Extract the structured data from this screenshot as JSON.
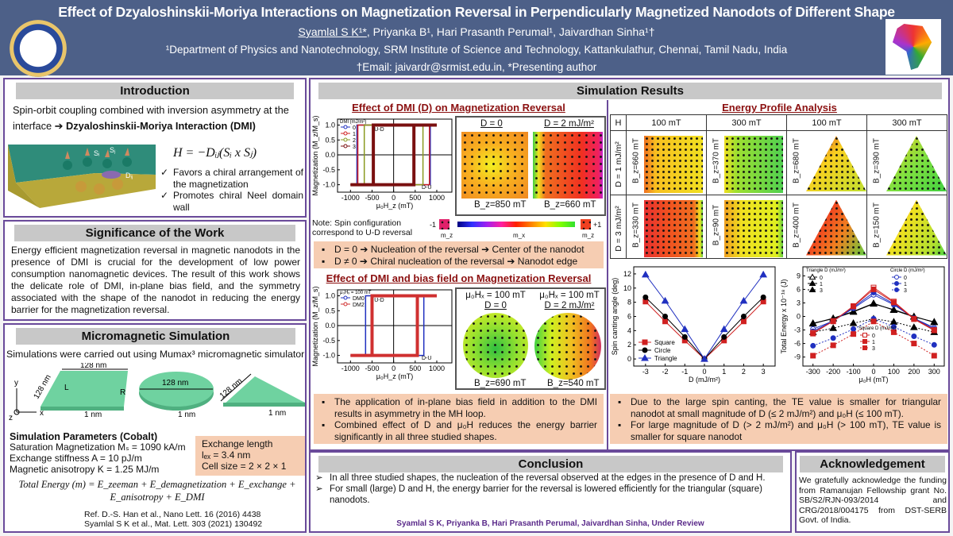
{
  "header": {
    "title": "Effect of Dzyaloshinskii-Moriya Interactions on Magnetization Reversal in Perpendicularly Magnetized Nanodots of Different Shape",
    "authors": [
      "Syamlal S K¹*",
      ", Priyanka B¹, Hari Prasanth Perumal¹, Jaivardhan Sinha¹†"
    ],
    "affiliation": "¹Department of Physics and Nanotechnology, SRM Institute of Science and Technology, Kattankulathur, Chennai, Tamil Nadu, India",
    "email": "†Email: jaivardr@srmist.edu.in, *Presenting author",
    "colors": {
      "header_bg": "#4d6088",
      "section_border": "#6a4a9a",
      "subtitle": "#8b1010",
      "highlight_box": "#f6cdb2"
    }
  },
  "introduction": {
    "title": "Introduction",
    "text": "Spin-orbit coupling combined with inversion asymmetry at the interface",
    "arrow": "➔",
    "bold": "Dzyaloshinskii-Moriya Interaction (DMI)",
    "equation": "H = −Dᵢⱼ(Sᵢ x Sⱼ)",
    "figure_labels": [
      "Sᵢ",
      "Sⱼ",
      "Dᵢⱼ"
    ],
    "points": [
      "Favors a chiral arrangement of the magnetization",
      "Promotes chiral Neel domain wall"
    ]
  },
  "significance": {
    "title": "Significance of the Work",
    "text": "Energy efficient magnetization reversal in magnetic nanodots in the presence of DMI is crucial for the development of low power consumption nanomagnetic devices. The result of this work shows the delicate role of DMI, in-plane bias field, and the symmetry associated with the shape of the nanodot in reducing the energy barrier for the magnetization reversal."
  },
  "micromagnetic": {
    "title": "Micromagnetic Simulation",
    "intro": "Simulations were carried out using Mumax³ micromagnetic simulator",
    "shape_labels": {
      "square_width": "128 nm",
      "square_side": "128 nm",
      "left": "L",
      "right": "R",
      "circle_dia": "128 nm",
      "triangle_side": "128 nm",
      "thickness": "1 nm",
      "axis_x": "x",
      "axis_y": "y",
      "axis_z": "z"
    },
    "params_title": "Simulation Parameters (Cobalt)",
    "params": [
      "Saturation Magnetization Mₛ =  1090 kA/m",
      "Exchange stiffness A = 10 pJ/m",
      "Magnetic anisotropy K = 1.25 MJ/m"
    ],
    "exchange": [
      "Exchange length",
      "lₑₓ = 3.4 nm",
      "Cell size = 2 × 2 × 1"
    ],
    "equation_line1": "Total Energy (m) = E_zeeman + E_demagnetization + E_exchange +",
    "equation_line2": "E_anisotropy + E_DMI",
    "refs": [
      "Ref. D.-S. Han et al., Nano Lett. 16 (2016) 4438",
      "Syamlal S K et al., Mat. Lett. 303 (2021) 130492"
    ]
  },
  "results": {
    "title": "Simulation Results",
    "dmi": {
      "title": "Effect of DMI (D) on Magnetization Reversal",
      "config_labels": [
        "D = 0",
        "D = 2 mJ/m²"
      ],
      "fields": [
        "B_z=850 mT",
        "B_z=660 mT"
      ],
      "note": "Note: Spin configuration correspond to U-D reversal",
      "colorbar": {
        "left": "-1",
        "right": "+1",
        "labels": [
          "m_z",
          "m_x",
          "m_z"
        ]
      },
      "bullets": [
        "D = 0 ➔ Nucleation of the reversal ➔ Center of the nanodot",
        "D ≠ 0 ➔ Chiral nucleation of the reversal ➔ Nanodot edge"
      ]
    },
    "bias": {
      "title": "Effect of DMI and bias field on Magnetization Reversal",
      "config_labels": [
        [
          "μ₀Hₓ = 100 mT",
          "D = 0"
        ],
        [
          "μ₀Hₓ = 100 mT",
          "D = 2 mJ/m²"
        ]
      ],
      "fields": [
        "B_z=690 mT",
        "B_z=540 mT"
      ],
      "bullets": [
        "The application of in-plane bias field in addition to the DMI results in asymmetry in the MH loop.",
        "Combined effect of D and μ₀H reduces the energy barrier significantly in all three studied shapes."
      ]
    },
    "energy": {
      "title": "Energy Profile Analysis",
      "header": [
        "H",
        "100 mT",
        "300 mT",
        "100 mT",
        "300 mT"
      ],
      "rows": [
        {
          "label": "D = 1 mJ/m²",
          "fields": [
            "B_z=660 mT",
            "B_z=370 mT",
            "B_z=680 mT",
            "B_z=390 mT"
          ]
        },
        {
          "label": "D = 3 mJ/m²",
          "fields": [
            "B_z=330 mT",
            "B_z=90 mT",
            "B_z=400 mT",
            "B_z=150 mT"
          ]
        }
      ],
      "bullets": [
        "Due to the large spin canting, the TE value is smaller for triangular nanodot at small magnitude of D (≤ 2 mJ/m²) and μ₀H (≤ 100 mT).",
        "For large magnitude of D (> 2 mJ/m²) and μ₀H (> 100 mT), TE value is smaller for square nanodot"
      ]
    }
  },
  "chart_data": [
    {
      "type": "line",
      "id": "mh-dmi",
      "xlabel": "μ₀H_z (mT)",
      "ylabel": "Magnetization (M_z/M_s)",
      "xlim": [
        -1300,
        1350
      ],
      "ylim": [
        -1.25,
        1.2
      ],
      "xticks": [
        -1000,
        -500,
        0,
        500,
        1000
      ],
      "yticks": [
        -1.0,
        -0.5,
        0.0,
        0.5,
        1.0
      ],
      "legend_title": "DMI (mJ/m²)",
      "legend": "top-left",
      "annotations": [
        "U-D",
        "D-U"
      ],
      "series": [
        {
          "name": "0",
          "color": "#2030c0",
          "switch_down": -850,
          "switch_up": 850
        },
        {
          "name": "1",
          "color": "#d02020",
          "switch_down": -830,
          "switch_up": 830
        },
        {
          "name": "2",
          "color": "#8a9a20",
          "switch_down": -680,
          "switch_up": 680
        },
        {
          "name": "3",
          "color": "#7a1010",
          "switch_down": -470,
          "switch_up": 470
        }
      ]
    },
    {
      "type": "line",
      "id": "mh-bias",
      "xlabel": "μ₀H_z (mT)",
      "ylabel": "Magnetization (M_z/M_s)",
      "xlim": [
        -1300,
        1350
      ],
      "ylim": [
        -1.25,
        1.2
      ],
      "xticks": [
        -1000,
        -500,
        0,
        500,
        1000
      ],
      "yticks": [
        -1.0,
        -0.5,
        0.0,
        0.5,
        1.0
      ],
      "legend_title": "μ₀Hₓ = 100 mT",
      "legend": "top-left",
      "annotations": [
        "U-D",
        "D-U"
      ],
      "series": [
        {
          "name": "DM0",
          "color": "#2030c0",
          "switch_down": -650,
          "switch_up": 700
        },
        {
          "name": "DM2",
          "color": "#d03030",
          "switch_down": -500,
          "switch_up": 550
        }
      ]
    },
    {
      "type": "line",
      "id": "canting",
      "xlabel": "D (mJ/m²)",
      "ylabel": "Spin canting angle (deg)",
      "x": [
        -3,
        -2,
        -1,
        0,
        1,
        2,
        3
      ],
      "xlim": [
        -3.6,
        3.6
      ],
      "ylim": [
        -1,
        13
      ],
      "xticks": [
        -3,
        -2,
        -1,
        0,
        1,
        2,
        3
      ],
      "yticks": [
        0,
        2,
        4,
        6,
        8,
        10,
        12
      ],
      "legend": "bottom-left",
      "series": [
        {
          "name": "Square",
          "color": "#d02020",
          "marker": "square",
          "values": [
            8.1,
            5.3,
            2.6,
            0,
            2.6,
            5.3,
            8.1
          ]
        },
        {
          "name": "Circle",
          "color": "#000000",
          "marker": "circle",
          "values": [
            8.7,
            6.0,
            3.1,
            0,
            3.1,
            6.0,
            8.7
          ]
        },
        {
          "name": "Triangle",
          "color": "#2030c0",
          "marker": "triangle",
          "values": [
            11.9,
            8.2,
            4.2,
            0,
            4.2,
            8.2,
            11.9
          ]
        }
      ]
    },
    {
      "type": "line",
      "id": "energy",
      "xlabel": "μ₀H (mT)",
      "ylabel": "Total Energy x 10⁻¹⁸ (J)",
      "x": [
        -300,
        -200,
        -100,
        0,
        100,
        200,
        300
      ],
      "xlim": [
        -350,
        350
      ],
      "ylim": [
        -11,
        11
      ],
      "xticks": [
        -300,
        -200,
        -100,
        0,
        100,
        200,
        300
      ],
      "yticks": [
        -9,
        -6,
        -3,
        0,
        3,
        6,
        9
      ],
      "legend_groups": [
        "Triangle D (mJ/m²)",
        "Circle D (mJ/m²)",
        "Square D (mJ/m²)"
      ],
      "series": [
        {
          "name": "0",
          "group": "Triangle",
          "color": "#000000",
          "marker": "triangle",
          "dash": false,
          "values": [
            -1.5,
            -0.5,
            1.0,
            2.8,
            1.5,
            0.0,
            -1.3
          ]
        },
        {
          "name": "1",
          "group": "Triangle",
          "color": "#000000",
          "marker": "triangle",
          "dash": false,
          "values": [
            -1.6,
            -0.4,
            1.1,
            2.9,
            1.4,
            -0.1,
            -1.2
          ]
        },
        {
          "name": "3",
          "group": "Triangle",
          "color": "#000000",
          "marker": "triangle",
          "dash": true,
          "values": [
            -3.5,
            -2.6,
            -1.5,
            -0.5,
            -1.2,
            -2.4,
            -3.5
          ]
        },
        {
          "name": "0",
          "group": "Circle",
          "color": "#2030c0",
          "marker": "circle",
          "dash": false,
          "values": [
            -2.8,
            -1.0,
            1.8,
            4.8,
            2.6,
            -0.4,
            -2.5
          ]
        },
        {
          "name": "1",
          "group": "Circle",
          "color": "#2030c0",
          "marker": "circle",
          "dash": false,
          "values": [
            -3.3,
            -1.0,
            2.0,
            5.3,
            2.8,
            -0.4,
            -2.8
          ]
        },
        {
          "name": "3",
          "group": "Circle",
          "color": "#2030c0",
          "marker": "circle",
          "dash": true,
          "values": [
            -6.5,
            -4.8,
            -2.8,
            -0.5,
            -2.3,
            -4.4,
            -6.3
          ]
        },
        {
          "name": "0",
          "group": "Square",
          "color": "#d02020",
          "marker": "square",
          "dash": false,
          "values": [
            -3.6,
            -1.1,
            2.3,
            6.4,
            3.3,
            -0.5,
            -3.0
          ]
        },
        {
          "name": "1",
          "group": "Square",
          "color": "#d02020",
          "marker": "square",
          "dash": false,
          "values": [
            -3.8,
            -1.0,
            2.2,
            6.0,
            3.1,
            -0.6,
            -3.1
          ]
        },
        {
          "name": "3",
          "group": "Square",
          "color": "#d02020",
          "marker": "square",
          "dash": true,
          "values": [
            -8.7,
            -6.4,
            -3.9,
            -1.1,
            -3.5,
            -6.0,
            -8.7
          ]
        }
      ]
    }
  ],
  "conclusion": {
    "title": "Conclusion",
    "points": [
      "In all three studied shapes, the nucleation of the reversal observed at the edges in the presence of D and H.",
      "For small (large) D and H, the energy barrier for the reversal is lowered efficiently for the triangular (square) nanodots."
    ],
    "citation": "Syamlal S K, Priyanka B, Hari Prasanth Perumal, Jaivardhan Sinha, Under Review"
  },
  "acknowledgement": {
    "title": "Acknowledgement",
    "text": "We gratefully acknowledge the funding from Ramanujan Fellowship grant No. SB/S2/RJN-093/2014 and CRG/2018/004175 from DST-SERB Govt. of India."
  }
}
